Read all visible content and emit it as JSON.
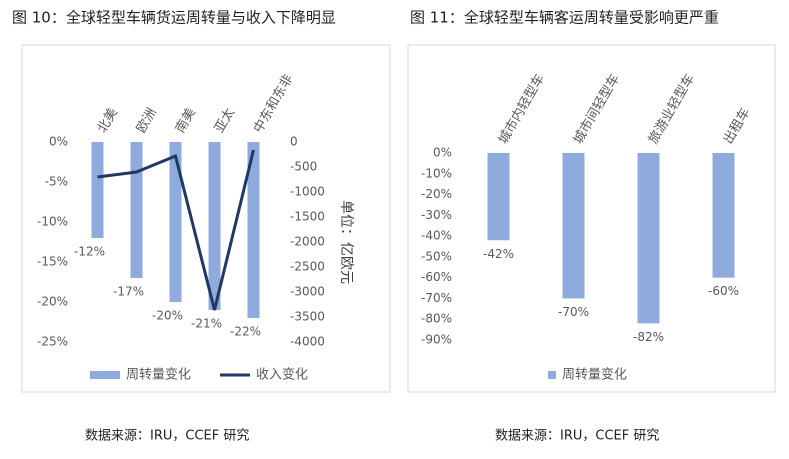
{
  "chart_data": [
    {
      "type": "bar",
      "title": "图 10：全球轻型车辆货运周转量与收入下降明显",
      "source": "数据来源：IRU，CCEF 研究",
      "categories": [
        "北美",
        "欧洲",
        "南美",
        "亚太",
        "中东和东非"
      ],
      "series": [
        {
          "name": "周转量变化",
          "type": "bar",
          "color": "#8faadc",
          "values": [
            -12,
            -17,
            -20,
            -21,
            -22
          ],
          "value_labels": [
            "-12%",
            "-17%",
            "-20%",
            "-21%",
            "-22%"
          ]
        },
        {
          "name": "收入变化",
          "type": "line",
          "axis": "y2",
          "color": "#1f3864",
          "values": [
            -700,
            -600,
            -280,
            -3360,
            -160
          ]
        }
      ],
      "ylim": [
        -25,
        0
      ],
      "yticks": [
        {
          "value": 0,
          "label": "0%"
        },
        {
          "value": -5,
          "label": "-5%"
        },
        {
          "value": -10,
          "label": "-10%"
        },
        {
          "value": -15,
          "label": "-15%"
        },
        {
          "value": -20,
          "label": "-20%"
        },
        {
          "value": -25,
          "label": "-25%"
        }
      ],
      "y2lim": [
        -4000,
        0
      ],
      "y2ticks": [
        0,
        -500,
        -1000,
        -1500,
        -2000,
        -2500,
        -3000,
        -3500,
        -4000
      ],
      "y2_label": "单位：亿欧元",
      "legend": "bottom"
    },
    {
      "type": "bar",
      "title": "图 11：全球轻型车辆客运周转量受影响更严重",
      "source": "数据来源：IRU，CCEF 研究",
      "categories": [
        "城市内轻型车",
        "城市间轻型车",
        "旅游业轻型车",
        "出租车"
      ],
      "series": [
        {
          "name": "周转量变化",
          "type": "bar",
          "color": "#8faadc",
          "values": [
            -42,
            -70,
            -82,
            -60
          ],
          "value_labels": [
            "-42%",
            "-70%",
            "-82%",
            "-60%"
          ]
        }
      ],
      "ylim": [
        -90,
        0
      ],
      "yticks": [
        {
          "value": 0,
          "label": "0%"
        },
        {
          "value": -10,
          "label": "-10%"
        },
        {
          "value": -20,
          "label": "-20%"
        },
        {
          "value": -30,
          "label": "-30%"
        },
        {
          "value": -40,
          "label": "-40%"
        },
        {
          "value": -50,
          "label": "-50%"
        },
        {
          "value": -60,
          "label": "-60%"
        },
        {
          "value": -70,
          "label": "-70%"
        },
        {
          "value": -80,
          "label": "-80%"
        },
        {
          "value": -90,
          "label": "-90%"
        }
      ],
      "legend": "bottom"
    }
  ]
}
